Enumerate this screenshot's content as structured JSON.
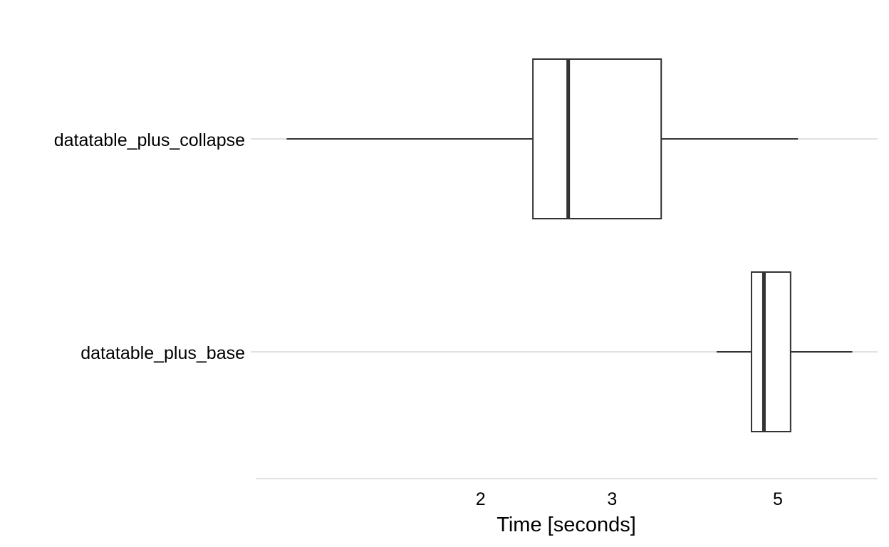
{
  "chart_data": {
    "type": "boxplot",
    "orientation": "horizontal",
    "x_scale": "log",
    "xlabel": "Time [seconds]",
    "ylabel": "",
    "xlim": [
      1.0,
      6.8
    ],
    "x_ticks": [
      2,
      3,
      5
    ],
    "grid": {
      "vertical": false,
      "horizontal": true
    },
    "colors": {
      "box_outline": "#333333",
      "grid": "#d9d9d9",
      "text": "#000000"
    },
    "categories": [
      "datatable_plus_collapse",
      "datatable_plus_base"
    ],
    "boxes": [
      {
        "label": "datatable_plus_collapse",
        "whisker_low": 1.1,
        "q1": 2.35,
        "median": 2.62,
        "q3": 3.49,
        "whisker_high": 5.32
      },
      {
        "label": "datatable_plus_base",
        "whisker_low": 4.14,
        "q1": 4.61,
        "median": 4.79,
        "q3": 5.2,
        "whisker_high": 6.29
      }
    ]
  }
}
